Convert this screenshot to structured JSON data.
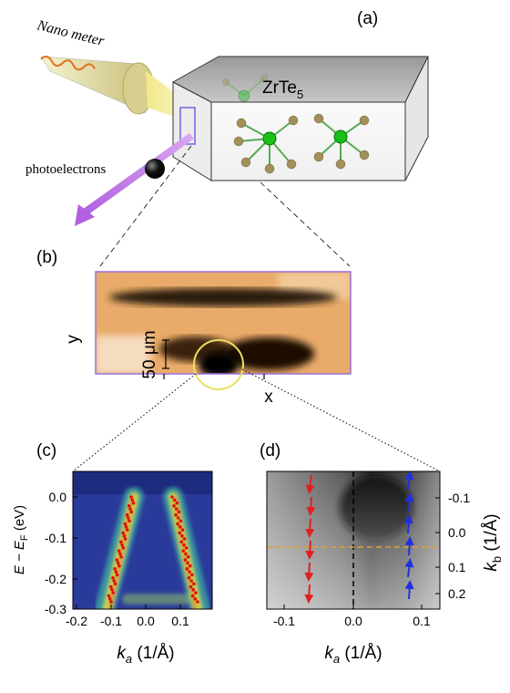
{
  "panel_a": {
    "label": "(a)",
    "source_label": "Nano meter",
    "sample_label": "ZrTe",
    "sample_subscript": "5",
    "electron_label": "photoelectrons"
  },
  "panel_b": {
    "label": "(b)",
    "x_label": "x",
    "y_label": "y",
    "scale_bar": "50 μm"
  },
  "panel_c": {
    "label": "(c)",
    "y_label": {
      "main": "E − E",
      "subscript": "F",
      "unit": " (eV)"
    },
    "x_label": {
      "main": "k",
      "subscript": "a",
      "unit": " (1/Å)"
    },
    "xticks": [
      "-0.2",
      "-0.1",
      "0.0",
      "0.1"
    ],
    "yticks": [
      "0.0",
      "-0.1",
      "-0.2",
      "-0.3"
    ]
  },
  "panel_d": {
    "label": "(d)",
    "x_label": {
      "main": "k",
      "subscript": "a",
      "unit": " (1/Å)"
    },
    "y_label": {
      "main": "k",
      "subscript": "b",
      "unit": " (1/Å)"
    },
    "xticks": [
      "-0.1",
      "0.0",
      "0.1"
    ],
    "yticks": [
      "-0.1",
      "0.0",
      "0.1",
      "0.2"
    ]
  }
}
